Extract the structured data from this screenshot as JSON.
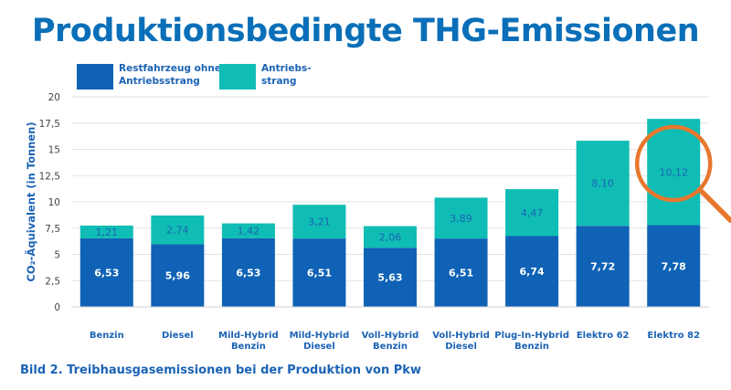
{
  "header": {
    "title": "Produktionsbedingte THG-Emissionen"
  },
  "legend": {
    "items": [
      {
        "label": "Restfahrzeug ohne\nAntriebsstrang",
        "color": "#0f62b5"
      },
      {
        "label": "Antriebs-\nstrang",
        "color": "#10bdb4"
      }
    ]
  },
  "caption": "Bild 2.   Treibhausgasemissionen bei der Produktion von Pkw",
  "highlight": {
    "category": "Elektro 82",
    "color": "#e8772e"
  },
  "chart_data": {
    "type": "bar",
    "stacked": true,
    "categories": [
      "Benzin",
      "Diesel",
      "Mild-Hybrid\nBenzin",
      "Mild-Hybrid\nDiesel",
      "Voll-Hybrid\nBenzin",
      "Voll-Hybrid\nDiesel",
      "Plug-In-Hybrid\nBenzin",
      "Elektro 62",
      "Elektro 82"
    ],
    "series": [
      {
        "name": "Restfahrzeug ohne Antriebsstrang",
        "color": "#0f62b5",
        "values": [
          6.53,
          5.96,
          6.53,
          6.51,
          5.63,
          6.51,
          6.74,
          7.72,
          7.78
        ],
        "labels": [
          "6,53",
          "5,96",
          "6,53",
          "6,51",
          "5,63",
          "6,51",
          "6,74",
          "7,72",
          "7,78"
        ]
      },
      {
        "name": "Antriebsstrang",
        "color": "#10bdb4",
        "values": [
          1.21,
          2.74,
          1.42,
          3.21,
          2.06,
          3.89,
          4.47,
          8.1,
          10.12
        ],
        "labels": [
          "1,21",
          "2,74",
          "1,42",
          "3,21",
          "2,06",
          "3,89",
          "4,47",
          "8,10",
          "10,12"
        ]
      }
    ],
    "ylabel": "CO₂-Äquivalent (in Tonnen)",
    "ylim": [
      0,
      20
    ],
    "yticks": [
      0,
      2.5,
      5,
      7.5,
      10,
      12.5,
      15,
      17.5,
      20
    ],
    "ytick_labels": [
      "0",
      "2,5",
      "5",
      "7,5",
      "10",
      "12,5",
      "15",
      "17,5",
      "20"
    ],
    "grid": true
  }
}
